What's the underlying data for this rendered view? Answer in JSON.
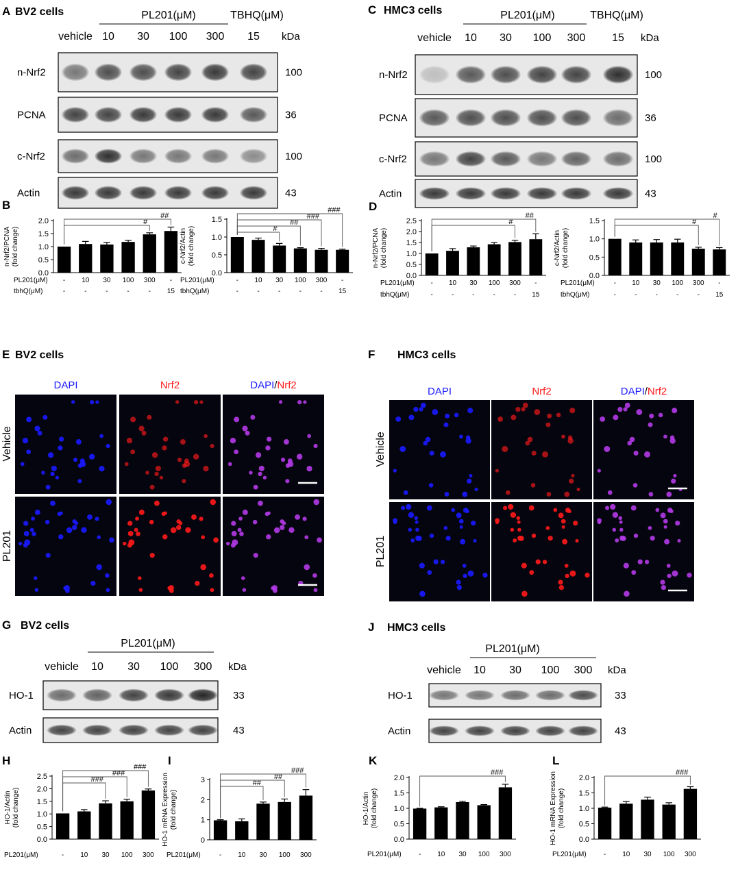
{
  "panels": {
    "A": {
      "letter": "A",
      "title": "BV2 cells",
      "group_label": "PL201(μM)",
      "tbhq_label": "TBHQ(μM)",
      "lanes": [
        "vehicle",
        "10",
        "30",
        "100",
        "300",
        "15"
      ],
      "kda_header": "kDa",
      "blots": [
        {
          "label": "n-Nrf2",
          "kda": "100"
        },
        {
          "label": "PCNA",
          "kda": "36"
        },
        {
          "label": "c-Nrf2",
          "kda": "100"
        },
        {
          "label": "Actin",
          "kda": "43"
        }
      ]
    },
    "C": {
      "letter": "C",
      "title": "HMC3 cells",
      "group_label": "PL201(μM)",
      "tbhq_label": "TBHQ(μM)",
      "lanes": [
        "vehicle",
        "10",
        "30",
        "100",
        "300",
        "15"
      ],
      "kda_header": "kDa",
      "blots": [
        {
          "label": "n-Nrf2",
          "kda": "100"
        },
        {
          "label": "PCNA",
          "kda": "36"
        },
        {
          "label": "c-Nrf2",
          "kda": "100"
        },
        {
          "label": "Actin",
          "kda": "43"
        }
      ]
    },
    "B": {
      "letter": "B"
    },
    "D": {
      "letter": "D"
    },
    "E": {
      "letter": "E",
      "title": "BV2 cells",
      "channels": [
        "DAPI",
        "Nrf2",
        "DAPI/Nrf2"
      ],
      "rows": [
        "Vehicle",
        "PL201"
      ]
    },
    "F": {
      "letter": "F",
      "title": "HMC3 cells",
      "channels": [
        "DAPI",
        "Nrf2",
        "DAPI/Nrf2"
      ],
      "rows": [
        "Vehicle",
        "PL201"
      ]
    },
    "G": {
      "letter": "G",
      "title": "BV2 cells",
      "group_label": "PL201(μM)",
      "lanes": [
        "vehicle",
        "10",
        "30",
        "100",
        "300"
      ],
      "kda_header": "kDa",
      "blots": [
        {
          "label": "HO-1",
          "kda": "33"
        },
        {
          "label": "Actin",
          "kda": "43"
        }
      ]
    },
    "J": {
      "letter": "J",
      "title": "HMC3 cells",
      "group_label": "PL201(μM)",
      "lanes": [
        "vehicle",
        "10",
        "30",
        "100",
        "300"
      ],
      "kda_header": "kDa",
      "blots": [
        {
          "label": "HO-1",
          "kda": "33"
        },
        {
          "label": "Actin",
          "kda": "43"
        }
      ]
    },
    "H": {
      "letter": "H"
    },
    "I": {
      "letter": "I"
    },
    "K": {
      "letter": "K"
    },
    "L": {
      "letter": "L"
    }
  },
  "colors": {
    "bar": "#000000",
    "dapi": "#1a1aff",
    "nrf2": "#ff1a1a",
    "slash": "#000000"
  },
  "chart_data": [
    {
      "id": "B1",
      "type": "bar",
      "ylabel": [
        "n-Nrf2/PCNA",
        "(fold change)"
      ],
      "ylim": [
        0,
        2.0
      ],
      "yticks": [
        "0.0",
        "0.5",
        "1.0",
        "1.5",
        "2.0"
      ],
      "categories": [
        "-",
        "10",
        "30",
        "100",
        "300",
        "-"
      ],
      "values": [
        1.0,
        1.1,
        1.08,
        1.18,
        1.47,
        1.6
      ],
      "errors": [
        0.0,
        0.1,
        0.08,
        0.06,
        0.06,
        0.15
      ],
      "row_labels": [
        "PL201(μM)",
        "tbhQ(μM)"
      ],
      "rows": [
        [
          "-",
          "10",
          "30",
          "100",
          "300",
          "-"
        ],
        [
          "-",
          "-",
          "-",
          "-",
          "-",
          "15"
        ]
      ],
      "comparisons": [
        {
          "from": 0,
          "to": 4,
          "label": "#"
        },
        {
          "from": 0,
          "to": 5,
          "label": "##"
        }
      ]
    },
    {
      "id": "B2",
      "type": "bar",
      "ylabel": [
        "c-Nrf2/Actin",
        "(fold change)"
      ],
      "ylim": [
        0,
        1.5
      ],
      "yticks": [
        "0.0",
        "0.5",
        "1.0",
        "1.5"
      ],
      "categories": [
        "-",
        "10",
        "30",
        "100",
        "300",
        "-"
      ],
      "values": [
        1.0,
        0.92,
        0.76,
        0.68,
        0.64,
        0.64
      ],
      "errors": [
        0.0,
        0.05,
        0.06,
        0.02,
        0.04,
        0.02
      ],
      "row_labels": [
        "PL201(μM)",
        "tbhQ(μM)"
      ],
      "rows": [
        [
          "-",
          "10",
          "30",
          "100",
          "300",
          "-"
        ],
        [
          "-",
          "-",
          "-",
          "-",
          "-",
          "15"
        ]
      ],
      "comparisons": [
        {
          "from": 0,
          "to": 2,
          "label": "#"
        },
        {
          "from": 0,
          "to": 3,
          "label": "##"
        },
        {
          "from": 0,
          "to": 4,
          "label": "###"
        },
        {
          "from": 0,
          "to": 5,
          "label": "###"
        }
      ]
    },
    {
      "id": "D1",
      "type": "bar",
      "ylabel": [
        "n-Nrf2/PCNA",
        "(fold change)"
      ],
      "ylim": [
        0,
        2.5
      ],
      "yticks": [
        "0.0",
        "0.5",
        "1.0",
        "1.5",
        "2.0",
        "2.5"
      ],
      "categories": [
        "-",
        "10",
        "30",
        "100",
        "300",
        "-"
      ],
      "values": [
        1.0,
        1.12,
        1.28,
        1.42,
        1.52,
        1.65
      ],
      "errors": [
        0.0,
        0.1,
        0.06,
        0.08,
        0.08,
        0.25
      ],
      "row_labels": [
        "PL201(μM)",
        "tbhQ(μM)"
      ],
      "rows": [
        [
          "-",
          "10",
          "30",
          "100",
          "300",
          "-"
        ],
        [
          "-",
          "-",
          "-",
          "-",
          "-",
          "15"
        ]
      ],
      "comparisons": [
        {
          "from": 0,
          "to": 4,
          "label": "#"
        },
        {
          "from": 0,
          "to": 5,
          "label": "##"
        }
      ]
    },
    {
      "id": "D2",
      "type": "bar",
      "ylabel": [
        "c-Nrf2/Actin",
        "(fold change)"
      ],
      "ylim": [
        0,
        1.5
      ],
      "yticks": [
        "0.0",
        "0.5",
        "1.0",
        "1.5"
      ],
      "categories": [
        "-",
        "10",
        "30",
        "100",
        "300",
        "-"
      ],
      "values": [
        1.0,
        0.9,
        0.9,
        0.9,
        0.73,
        0.71
      ],
      "errors": [
        0.0,
        0.07,
        0.08,
        0.09,
        0.04,
        0.05
      ],
      "row_labels": [
        "PL201(μM)",
        "tbhQ(μM)"
      ],
      "rows": [
        [
          "-",
          "10",
          "30",
          "100",
          "300",
          "-"
        ],
        [
          "-",
          "-",
          "-",
          "-",
          "-",
          "15"
        ]
      ],
      "comparisons": [
        {
          "from": 0,
          "to": 4,
          "label": "#"
        },
        {
          "from": 0,
          "to": 5,
          "label": "#"
        }
      ]
    },
    {
      "id": "H",
      "type": "bar",
      "ylabel": [
        "HO-1/Actin",
        "(fold change)"
      ],
      "ylim": [
        0,
        2.5
      ],
      "yticks": [
        "0.0",
        "0.5",
        "1.0",
        "1.5",
        "2.0",
        "2.5"
      ],
      "categories": [
        "-",
        "10",
        "30",
        "100",
        "300"
      ],
      "values": [
        1.02,
        1.1,
        1.42,
        1.5,
        1.93
      ],
      "errors": [
        0.0,
        0.07,
        0.1,
        0.08,
        0.06
      ],
      "row_labels": [
        "PL201(μM)"
      ],
      "rows": [
        [
          "-",
          "10",
          "30",
          "100",
          "300"
        ]
      ],
      "comparisons": [
        {
          "from": 0,
          "to": 2,
          "label": "###"
        },
        {
          "from": 0,
          "to": 3,
          "label": "###"
        },
        {
          "from": 0,
          "to": 4,
          "label": "###"
        }
      ]
    },
    {
      "id": "I",
      "type": "bar",
      "ylabel": [
        "HO-1 mRNA Expression",
        "(fold change)"
      ],
      "ylim": [
        0,
        3
      ],
      "yticks": [
        "0",
        "1",
        "2",
        "3"
      ],
      "categories": [
        "-",
        "10",
        "30",
        "100",
        "300"
      ],
      "values": [
        0.97,
        0.92,
        1.8,
        1.88,
        2.2
      ],
      "errors": [
        0.03,
        0.12,
        0.08,
        0.15,
        0.3
      ],
      "row_labels": [
        "PL201(μM)"
      ],
      "rows": [
        [
          "-",
          "10",
          "30",
          "100",
          "300"
        ]
      ],
      "comparisons": [
        {
          "from": 0,
          "to": 2,
          "label": "##"
        },
        {
          "from": 0,
          "to": 3,
          "label": "##"
        },
        {
          "from": 0,
          "to": 4,
          "label": "###"
        }
      ]
    },
    {
      "id": "K",
      "type": "bar",
      "ylabel": [
        "HO-1/Actin",
        "(fold change)"
      ],
      "ylim": [
        0,
        2.0
      ],
      "yticks": [
        "0.0",
        "0.5",
        "1.0",
        "1.5",
        "2.0"
      ],
      "categories": [
        "-",
        "10",
        "30",
        "100",
        "300"
      ],
      "values": [
        0.99,
        1.03,
        1.2,
        1.1,
        1.68
      ],
      "errors": [
        0.01,
        0.02,
        0.03,
        0.02,
        0.1
      ],
      "row_labels": [
        "PL201(μM)"
      ],
      "rows": [
        [
          "-",
          "10",
          "30",
          "100",
          "300"
        ]
      ],
      "comparisons": [
        {
          "from": 0,
          "to": 4,
          "label": "###"
        }
      ]
    },
    {
      "id": "L",
      "type": "bar",
      "ylabel": [
        "HO-1 mRNA Expression",
        "(fold change)"
      ],
      "ylim": [
        0,
        2.0
      ],
      "yticks": [
        "0.0",
        "0.5",
        "1.0",
        "1.5",
        "2.0"
      ],
      "categories": [
        "-",
        "10",
        "30",
        "100",
        "300"
      ],
      "values": [
        1.02,
        1.15,
        1.28,
        1.12,
        1.63
      ],
      "errors": [
        0.02,
        0.07,
        0.08,
        0.06,
        0.07
      ],
      "row_labels": [
        "PL201(μM)"
      ],
      "rows": [
        [
          "-",
          "10",
          "30",
          "100",
          "300"
        ]
      ],
      "comparisons": [
        {
          "from": 0,
          "to": 4,
          "label": "###"
        }
      ]
    }
  ]
}
